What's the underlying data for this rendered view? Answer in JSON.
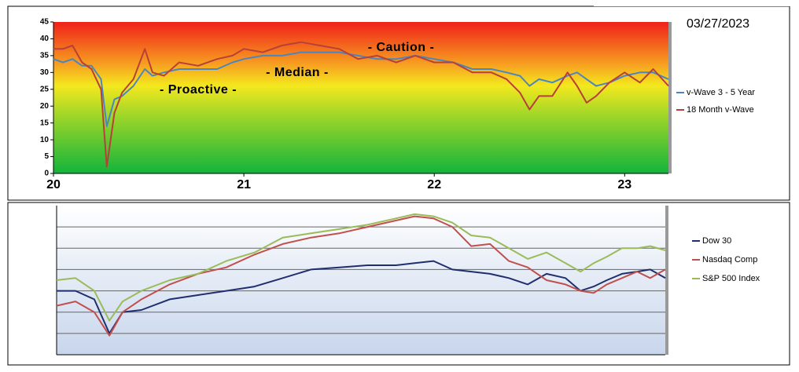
{
  "date": "03/27/2023",
  "chart_data": [
    {
      "type": "line",
      "annotations": [
        "- Proactive -",
        "- Median -",
        "- Caution -"
      ],
      "x": [
        2020,
        2020.05,
        2020.1,
        2020.15,
        2020.2,
        2020.25,
        2020.28,
        2020.32,
        2020.36,
        2020.42,
        2020.48,
        2020.52,
        2020.58,
        2020.66,
        2020.76,
        2020.86,
        2020.94,
        2021.0,
        2021.1,
        2021.2,
        2021.3,
        2021.4,
        2021.5,
        2021.6,
        2021.7,
        2021.8,
        2021.9,
        2022.0,
        2022.1,
        2022.2,
        2022.3,
        2022.38,
        2022.45,
        2022.5,
        2022.55,
        2022.62,
        2022.7,
        2022.75,
        2022.8,
        2022.85,
        2022.92,
        2023.0,
        2023.08,
        2023.15,
        2023.23
      ],
      "series": [
        {
          "name": "v-Wave 3 - 5 Year",
          "color": "#4a86c0",
          "values": [
            34,
            33,
            34,
            32,
            32,
            28,
            14,
            22,
            23,
            26,
            31,
            29,
            30,
            31,
            31,
            31,
            33,
            34,
            35,
            35,
            36,
            36,
            36,
            35,
            34,
            34,
            35,
            34,
            33,
            31,
            31,
            30,
            29,
            26,
            28,
            27,
            29,
            30,
            28,
            26,
            27,
            29,
            30,
            30,
            28
          ]
        },
        {
          "name": "18 Month v-Wave",
          "color": "#b8403a",
          "values": [
            37,
            37,
            38,
            33,
            31,
            25,
            2,
            18,
            24,
            28,
            37,
            30,
            29,
            33,
            32,
            34,
            35,
            37,
            36,
            38,
            39,
            38,
            37,
            34,
            35,
            33,
            35,
            33,
            33,
            30,
            30,
            28,
            24,
            19,
            23,
            23,
            30,
            26,
            21,
            23,
            27,
            30,
            27,
            31,
            26
          ]
        }
      ],
      "xlim": [
        2020,
        2023.23
      ],
      "xticks": [
        {
          "value": 2020,
          "label": "20"
        },
        {
          "value": 2021,
          "label": "21"
        },
        {
          "value": 2022,
          "label": "22"
        },
        {
          "value": 2023,
          "label": "23"
        }
      ],
      "ylim": [
        0,
        45
      ],
      "yticks": [
        0,
        5,
        10,
        15,
        20,
        25,
        30,
        35,
        40,
        45
      ]
    },
    {
      "type": "line",
      "x": [
        2020,
        2020.1,
        2020.2,
        2020.28,
        2020.35,
        2020.45,
        2020.6,
        2020.75,
        2020.9,
        2021.05,
        2021.2,
        2021.35,
        2021.5,
        2021.65,
        2021.8,
        2021.9,
        2022.0,
        2022.1,
        2022.2,
        2022.3,
        2022.4,
        2022.5,
        2022.6,
        2022.7,
        2022.78,
        2022.85,
        2022.92,
        2023.0,
        2023.08,
        2023.15,
        2023.23
      ],
      "series": [
        {
          "name": "Dow 30",
          "color": "#1f2f6e",
          "values": [
            3.0,
            3.0,
            2.6,
            1.0,
            2.0,
            2.1,
            2.6,
            2.8,
            3.0,
            3.2,
            3.6,
            4.0,
            4.1,
            4.2,
            4.2,
            4.3,
            4.4,
            4.0,
            3.9,
            3.8,
            3.6,
            3.3,
            3.8,
            3.6,
            3.0,
            3.2,
            3.5,
            3.8,
            3.9,
            4.0,
            3.6
          ]
        },
        {
          "name": "Nasdaq Comp",
          "color": "#c0504d",
          "values": [
            2.3,
            2.5,
            2.0,
            0.9,
            2.0,
            2.6,
            3.3,
            3.8,
            4.1,
            4.7,
            5.2,
            5.5,
            5.7,
            6.0,
            6.3,
            6.5,
            6.4,
            6.0,
            5.1,
            5.2,
            4.4,
            4.1,
            3.5,
            3.3,
            3.0,
            2.9,
            3.3,
            3.6,
            3.9,
            3.6,
            4.0
          ]
        },
        {
          "name": "S&P 500 Index",
          "color": "#9bbb59",
          "values": [
            3.5,
            3.6,
            3.0,
            1.6,
            2.5,
            3.0,
            3.5,
            3.8,
            4.4,
            4.8,
            5.5,
            5.7,
            5.9,
            6.1,
            6.4,
            6.6,
            6.5,
            6.2,
            5.6,
            5.5,
            5.0,
            4.5,
            4.8,
            4.3,
            3.9,
            4.3,
            4.6,
            5.0,
            5.0,
            5.1,
            4.9
          ]
        }
      ],
      "xlim": [
        2020,
        2023.23
      ],
      "ylim": [
        0,
        7
      ],
      "gridlines": [
        1,
        2,
        3,
        4,
        5,
        6
      ]
    }
  ]
}
